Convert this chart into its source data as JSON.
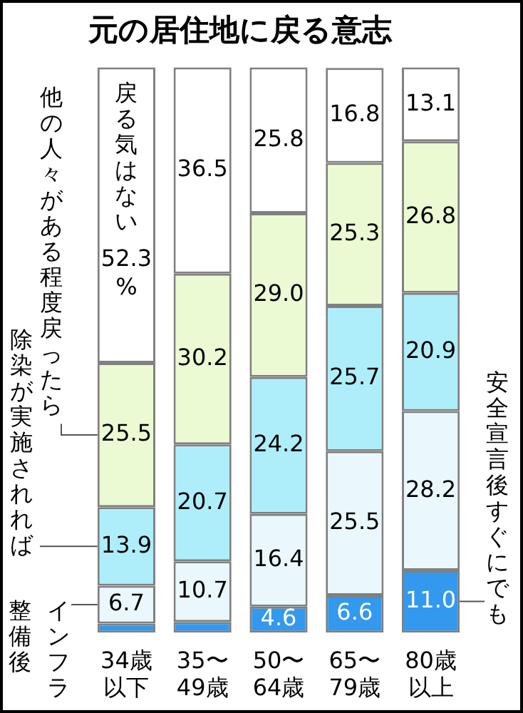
{
  "chart_data": {
    "type": "bar",
    "title": "元の居住地に戻る意志",
    "stacked": true,
    "legend": false,
    "tick_labels": "x",
    "grid": false,
    "categories": [
      "34歳以下",
      "35〜49歳",
      "50〜64歳",
      "65〜79歳",
      "80歳以上"
    ],
    "series": [
      {
        "name": "安全宣言後すぐにでも",
        "color": "#3399ee",
        "values": [
          1.6,
          1.9,
          4.6,
          6.6,
          11.0
        ],
        "value_labels": [
          null,
          null,
          "4.6",
          "6.6",
          "11.0"
        ]
      },
      {
        "name": "インフラ整備後",
        "color": "#eaf8fd",
        "values": [
          6.7,
          10.7,
          16.4,
          25.5,
          28.2
        ],
        "value_labels": [
          "6.7",
          "10.7",
          "16.4",
          "25.5",
          "28.2"
        ]
      },
      {
        "name": "除染が実施されれば",
        "color": "#aeeefa",
        "values": [
          13.9,
          20.7,
          24.2,
          25.7,
          20.9
        ],
        "value_labels": [
          "13.9",
          "20.7",
          "24.2",
          "25.7",
          "20.9"
        ]
      },
      {
        "name": "他の人々がある程度戻ったら",
        "color": "#ebfad2",
        "values": [
          25.5,
          30.2,
          29.0,
          25.3,
          26.8
        ],
        "value_labels": [
          "25.5",
          "30.2",
          "29.0",
          "25.3",
          "26.8"
        ]
      },
      {
        "name": "戻る気はない",
        "color": "#ffffff",
        "values": [
          52.3,
          36.5,
          25.8,
          16.8,
          13.1
        ],
        "value_labels": [
          "52.3%",
          "36.5",
          "25.8",
          "16.8",
          "13.1"
        ]
      }
    ]
  }
}
